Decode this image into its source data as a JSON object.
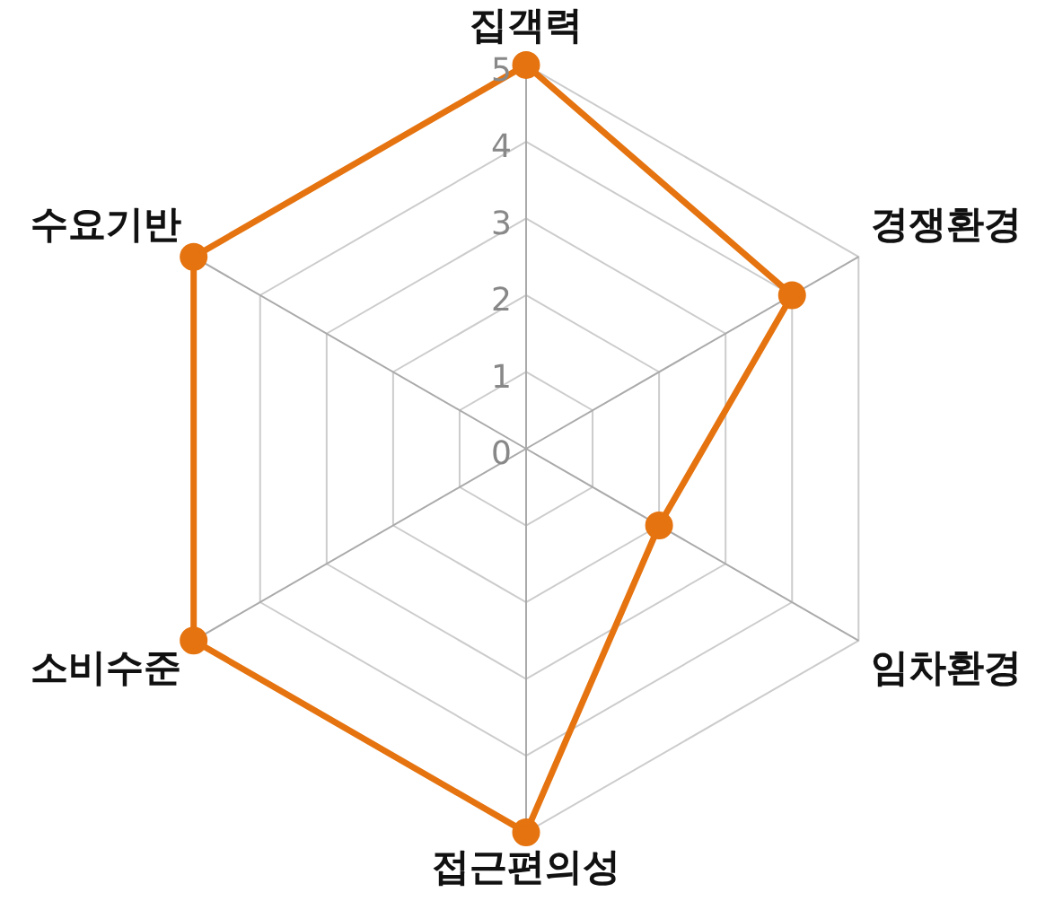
{
  "chart_data": {
    "type": "radar",
    "categories": [
      "집객력",
      "경쟁환경",
      "임차환경",
      "접근편의성",
      "소비수준",
      "수요기반"
    ],
    "series": [
      {
        "color": "#e5730f",
        "values": [
          5,
          4,
          2,
          5,
          5,
          5
        ]
      }
    ],
    "ylim": [
      0,
      5
    ],
    "yticks": [
      0,
      1,
      2,
      3,
      4,
      5
    ],
    "grid": true,
    "legend": false,
    "marker": "circle",
    "line_style": "solid"
  }
}
